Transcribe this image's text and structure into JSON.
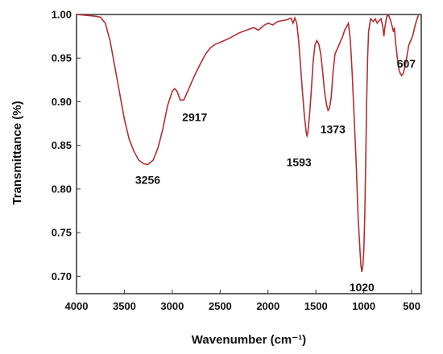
{
  "chart_data": {
    "type": "line",
    "xlabel": "Wavenumber (cm⁻¹)",
    "ylabel": "Transmittance (%)",
    "xlim": [
      4000,
      400
    ],
    "ylim": [
      0.68,
      1.0
    ],
    "x_ticks": [
      4000,
      3500,
      3000,
      2500,
      2000,
      1500,
      1000,
      500
    ],
    "x_tick_labels": [
      "4000",
      "3500",
      "3000",
      "2500",
      "2000",
      "1500",
      "1000",
      "500"
    ],
    "y_ticks": [
      0.7,
      0.75,
      0.8,
      0.85,
      0.9,
      0.95,
      1.0
    ],
    "y_tick_labels": [
      "0.70",
      "0.75",
      "0.80",
      "0.85",
      "0.90",
      "0.95",
      "1.00"
    ],
    "line_color": "#b03030",
    "grid": false,
    "series": [
      {
        "points": [
          [
            4000,
            1.0
          ],
          [
            3900,
            0.999
          ],
          [
            3800,
            0.998
          ],
          [
            3750,
            0.997
          ],
          [
            3700,
            0.99
          ],
          [
            3650,
            0.97
          ],
          [
            3600,
            0.94
          ],
          [
            3550,
            0.91
          ],
          [
            3500,
            0.88
          ],
          [
            3450,
            0.857
          ],
          [
            3400,
            0.843
          ],
          [
            3350,
            0.833
          ],
          [
            3300,
            0.829
          ],
          [
            3256,
            0.828
          ],
          [
            3200,
            0.833
          ],
          [
            3150,
            0.847
          ],
          [
            3100,
            0.868
          ],
          [
            3050,
            0.895
          ],
          [
            3000,
            0.912
          ],
          [
            2975,
            0.915
          ],
          [
            2950,
            0.912
          ],
          [
            2917,
            0.902
          ],
          [
            2880,
            0.902
          ],
          [
            2850,
            0.909
          ],
          [
            2800,
            0.922
          ],
          [
            2750,
            0.934
          ],
          [
            2700,
            0.945
          ],
          [
            2650,
            0.955
          ],
          [
            2600,
            0.962
          ],
          [
            2550,
            0.966
          ],
          [
            2500,
            0.968
          ],
          [
            2400,
            0.973
          ],
          [
            2300,
            0.979
          ],
          [
            2200,
            0.983
          ],
          [
            2150,
            0.985
          ],
          [
            2100,
            0.982
          ],
          [
            2050,
            0.987
          ],
          [
            2000,
            0.99
          ],
          [
            1950,
            0.988
          ],
          [
            1900,
            0.992
          ],
          [
            1850,
            0.993
          ],
          [
            1800,
            0.994
          ],
          [
            1760,
            0.996
          ],
          [
            1740,
            0.99
          ],
          [
            1720,
            0.996
          ],
          [
            1700,
            0.99
          ],
          [
            1680,
            0.97
          ],
          [
            1660,
            0.94
          ],
          [
            1640,
            0.91
          ],
          [
            1620,
            0.883
          ],
          [
            1600,
            0.864
          ],
          [
            1593,
            0.861
          ],
          [
            1585,
            0.864
          ],
          [
            1570,
            0.88
          ],
          [
            1550,
            0.91
          ],
          [
            1530,
            0.945
          ],
          [
            1510,
            0.965
          ],
          [
            1490,
            0.97
          ],
          [
            1470,
            0.966
          ],
          [
            1450,
            0.955
          ],
          [
            1430,
            0.935
          ],
          [
            1410,
            0.912
          ],
          [
            1390,
            0.897
          ],
          [
            1373,
            0.89
          ],
          [
            1360,
            0.892
          ],
          [
            1340,
            0.905
          ],
          [
            1320,
            0.935
          ],
          [
            1300,
            0.955
          ],
          [
            1280,
            0.96
          ],
          [
            1260,
            0.965
          ],
          [
            1240,
            0.97
          ],
          [
            1220,
            0.975
          ],
          [
            1200,
            0.982
          ],
          [
            1180,
            0.986
          ],
          [
            1160,
            0.99
          ],
          [
            1140,
            0.97
          ],
          [
            1120,
            0.93
          ],
          [
            1100,
            0.88
          ],
          [
            1080,
            0.83
          ],
          [
            1060,
            0.77
          ],
          [
            1040,
            0.73
          ],
          [
            1030,
            0.712
          ],
          [
            1020,
            0.705
          ],
          [
            1010,
            0.712
          ],
          [
            1000,
            0.73
          ],
          [
            990,
            0.77
          ],
          [
            980,
            0.83
          ],
          [
            970,
            0.9
          ],
          [
            960,
            0.95
          ],
          [
            950,
            0.98
          ],
          [
            930,
            0.995
          ],
          [
            900,
            0.992
          ],
          [
            880,
            0.995
          ],
          [
            860,
            0.99
          ],
          [
            840,
            0.993
          ],
          [
            820,
            0.995
          ],
          [
            800,
            0.985
          ],
          [
            790,
            0.975
          ],
          [
            780,
            0.985
          ],
          [
            760,
            0.998
          ],
          [
            740,
            0.999
          ],
          [
            720,
            0.993
          ],
          [
            700,
            0.985
          ],
          [
            690,
            0.98
          ],
          [
            680,
            0.985
          ],
          [
            670,
            0.97
          ],
          [
            650,
            0.95
          ],
          [
            630,
            0.935
          ],
          [
            607,
            0.93
          ],
          [
            590,
            0.932
          ],
          [
            570,
            0.94
          ],
          [
            550,
            0.952
          ],
          [
            530,
            0.965
          ],
          [
            510,
            0.97
          ],
          [
            490,
            0.975
          ],
          [
            470,
            0.985
          ],
          [
            450,
            0.993
          ],
          [
            430,
            0.999
          ]
        ]
      }
    ],
    "annotations": [
      {
        "text": "3256",
        "x": 3256,
        "y": 0.828
      },
      {
        "text": "2917",
        "x": 2917,
        "y": 0.902
      },
      {
        "text": "1593",
        "x": 1593,
        "y": 0.861
      },
      {
        "text": "1373",
        "x": 1373,
        "y": 0.89
      },
      {
        "text": "1020",
        "x": 1020,
        "y": 0.705
      },
      {
        "text": "607",
        "x": 607,
        "y": 0.93
      }
    ]
  }
}
